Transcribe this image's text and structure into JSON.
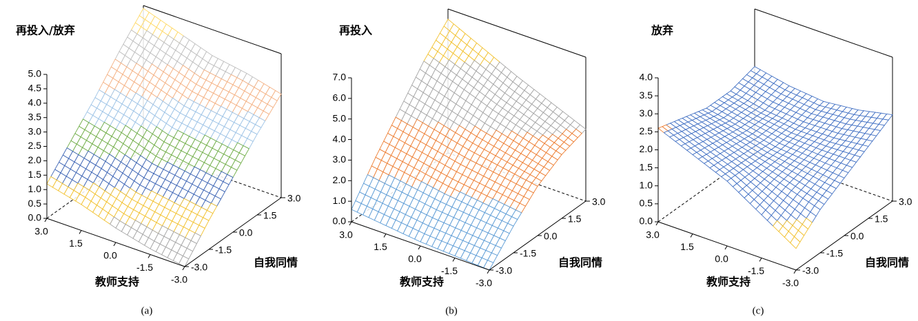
{
  "chart_data": [
    {
      "type": "surface",
      "title": "再投入/放弃",
      "panel_label": "(a)",
      "xlabel": "教师支持",
      "ylabel": "自我同情",
      "xlim": [
        -3,
        3
      ],
      "ylim": [
        -3,
        3
      ],
      "zlim": [
        0,
        5
      ],
      "xticks": [
        {
          "value": 3,
          "label": "3.0"
        },
        {
          "value": 1.5,
          "label": "1.5"
        },
        {
          "value": 0,
          "label": "0.0"
        },
        {
          "value": -1.5,
          "label": "-1.5"
        },
        {
          "value": -3,
          "label": "-3.0"
        }
      ],
      "yticks": [
        {
          "value": -3,
          "label": "-3.0"
        },
        {
          "value": -1.5,
          "label": "-1.5"
        },
        {
          "value": 0,
          "label": "0.0"
        },
        {
          "value": 1.5,
          "label": "1.5"
        },
        {
          "value": 3,
          "label": "3.0"
        }
      ],
      "zticks": [
        {
          "value": 0,
          "label": "0.0"
        },
        {
          "value": 0.5,
          "label": "0.5"
        },
        {
          "value": 1,
          "label": "1.0"
        },
        {
          "value": 1.5,
          "label": "1.5"
        },
        {
          "value": 2,
          "label": "2.0"
        },
        {
          "value": 2.5,
          "label": "2.5"
        },
        {
          "value": 3,
          "label": "3.0"
        },
        {
          "value": 3.5,
          "label": "3.5"
        },
        {
          "value": 4,
          "label": "4.0"
        },
        {
          "value": 4.5,
          "label": "4.5"
        },
        {
          "value": 5,
          "label": "5.0"
        }
      ],
      "x": [
        -3,
        -1.5,
        0,
        1.5,
        3
      ],
      "y": [
        -3,
        -1.5,
        0,
        1.5,
        3
      ],
      "z": [
        [
          0.0,
          0.2,
          0.5,
          0.9,
          1.2
        ],
        [
          1.0,
          1.2,
          1.4,
          1.8,
          2.1
        ],
        [
          1.9,
          2.1,
          2.3,
          2.7,
          3.0
        ],
        [
          2.8,
          3.0,
          3.2,
          3.6,
          4.0
        ],
        [
          3.6,
          3.9,
          4.1,
          4.5,
          4.9
        ]
      ],
      "band_colors": [
        "#a6a6a6",
        "#f2c12e",
        "#3c64b4",
        "#70ad47",
        "#9dc3e6",
        "#f4b183",
        "#bfbfbf",
        "#ffd966"
      ]
    },
    {
      "type": "surface",
      "title": "再投入",
      "panel_label": "(b)",
      "xlabel": "教师支持",
      "ylabel": "自我同情",
      "xlim": [
        -3,
        3
      ],
      "ylim": [
        -3,
        3
      ],
      "zlim": [
        0,
        7
      ],
      "xticks": [
        {
          "value": 3,
          "label": "3.0"
        },
        {
          "value": 1.5,
          "label": "1.5"
        },
        {
          "value": 0,
          "label": "0.0"
        },
        {
          "value": -1.5,
          "label": "-1.5"
        },
        {
          "value": -3,
          "label": "-3.0"
        }
      ],
      "yticks": [
        {
          "value": -3,
          "label": "-3.0"
        },
        {
          "value": -1.5,
          "label": "-1.5"
        },
        {
          "value": 0,
          "label": "0.0"
        },
        {
          "value": 1.5,
          "label": "1.5"
        },
        {
          "value": 3,
          "label": "3.0"
        }
      ],
      "zticks": [
        {
          "value": 0,
          "label": "0.0"
        },
        {
          "value": 1,
          "label": "1.0"
        },
        {
          "value": 2,
          "label": "2.0"
        },
        {
          "value": 3,
          "label": "3.0"
        },
        {
          "value": 4,
          "label": "4.0"
        },
        {
          "value": 5,
          "label": "5.0"
        },
        {
          "value": 6,
          "label": "6.0"
        },
        {
          "value": 7,
          "label": "7.0"
        }
      ],
      "x": [
        -3,
        -1.5,
        0,
        1.5,
        3
      ],
      "y": [
        -3,
        -1.5,
        0,
        1.5,
        3
      ],
      "z": [
        [
          0.0,
          0.1,
          0.2,
          0.4,
          0.6
        ],
        [
          1.3,
          1.5,
          1.7,
          2.0,
          2.3
        ],
        [
          2.4,
          2.7,
          3.0,
          3.4,
          3.8
        ],
        [
          3.1,
          3.6,
          4.1,
          4.7,
          5.3
        ],
        [
          3.5,
          4.2,
          4.9,
          5.7,
          6.5
        ]
      ],
      "band_colors": [
        "#5b9bd5",
        "#ed7d31",
        "#a5a5a5",
        "#f2c12e"
      ]
    },
    {
      "type": "surface",
      "title": "放弃",
      "panel_label": "(c)",
      "xlabel": "教师支持",
      "ylabel": "自我同情",
      "xlim": [
        -3,
        3
      ],
      "ylim": [
        -3,
        3
      ],
      "zlim": [
        0,
        4
      ],
      "xticks": [
        {
          "value": 3,
          "label": "3.0"
        },
        {
          "value": 1.5,
          "label": "1.5"
        },
        {
          "value": 0,
          "label": "0.0"
        },
        {
          "value": -1.5,
          "label": "-1.5"
        },
        {
          "value": -3,
          "label": "-3.0"
        }
      ],
      "yticks": [
        {
          "value": -3,
          "label": "-3.0"
        },
        {
          "value": -1.5,
          "label": "-1.5"
        },
        {
          "value": 0,
          "label": "0.0"
        },
        {
          "value": 1.5,
          "label": "1.5"
        },
        {
          "value": 3,
          "label": "3.0"
        }
      ],
      "zticks": [
        {
          "value": 0,
          "label": "0.0"
        },
        {
          "value": 0.5,
          "label": "0.5"
        },
        {
          "value": 1,
          "label": "1.0"
        },
        {
          "value": 1.5,
          "label": "1.5"
        },
        {
          "value": 2,
          "label": "2.0"
        },
        {
          "value": 2.5,
          "label": "2.5"
        },
        {
          "value": 3,
          "label": "3.0"
        },
        {
          "value": 3.5,
          "label": "3.5"
        },
        {
          "value": 4,
          "label": "4.0"
        }
      ],
      "x": [
        -3,
        -1.5,
        0,
        1.5,
        3
      ],
      "y": [
        -3,
        -1.5,
        0,
        1.5,
        3
      ],
      "z": [
        [
          0.6,
          1.2,
          1.8,
          2.2,
          2.6
        ],
        [
          1.2,
          1.5,
          1.8,
          2.1,
          2.4
        ],
        [
          1.6,
          1.7,
          1.8,
          2.0,
          2.2
        ],
        [
          2.0,
          1.9,
          1.9,
          2.0,
          2.2
        ],
        [
          2.4,
          2.2,
          2.1,
          2.2,
          2.4
        ]
      ],
      "band_colors": [
        "#f2c12e",
        "#f2c12e",
        "#4472c4",
        "#4472c4",
        "#4472c4",
        "#ed7d31",
        "#70ad47",
        "#70ad47"
      ]
    }
  ]
}
